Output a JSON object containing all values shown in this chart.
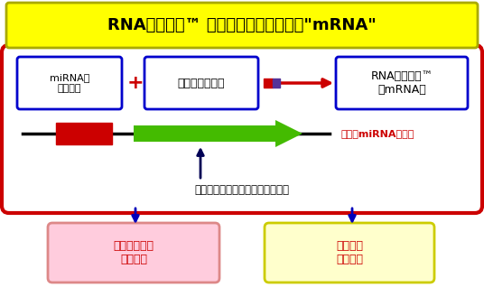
{
  "title": "RNAスイッチ™ とは、デザインされた\"mRNA\"",
  "title_bg": "#FFFF00",
  "title_color": "#000000",
  "title_fontsize": 13,
  "bg_color": "#FFFFFF",
  "main_box_color": "#CC0000",
  "box1_text": "miRNAの\n認識配列",
  "box2_text": "マーカー遺伝子",
  "box3_text": "RNAスイッチ™\n（mRNA）",
  "box1_border": "#0000CC",
  "box2_border": "#0000CC",
  "box3_border": "#0000CC",
  "box1_bg": "#FFFFFF",
  "box2_bg": "#FFFFFF",
  "box3_bg": "#FFFFFF",
  "plus_text": "+",
  "detect_text": "活性型miRNAを検出",
  "detect_color": "#CC0000",
  "label_text": "自殺遺伝子、蛍光タンパク質など",
  "label_color": "#000000",
  "box_left_text": "再生医療分野\nへの応用",
  "box_right_text": "創薬分野\nへの応用",
  "box_left_bg": "#FFCCDD",
  "box_right_bg": "#FFFFCC",
  "box_left_border": "#DD8888",
  "box_right_border": "#CCCC00",
  "output_text_color": "#CC0000",
  "arrow_down_color": "#0000BB",
  "line_color": "#000000",
  "red_block_color": "#CC0000",
  "green_arrow_color": "#44BB00"
}
